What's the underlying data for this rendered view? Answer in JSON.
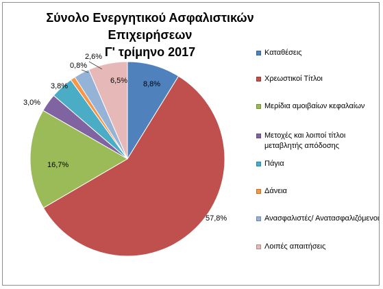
{
  "chart_data": {
    "type": "pie",
    "title": "Σύνολο Ενεργητικού Ασφαλιστικών Επιχειρήσεων",
    "subtitle": "Γ' τρίμηνο 2017",
    "slices": [
      {
        "label": "Καταθέσεις",
        "value": 8.8,
        "display": "8,8%",
        "color": "#4f81bd"
      },
      {
        "label": "Χρεωστικοί  Τίτλοι",
        "value": 57.8,
        "display": "57,8%",
        "color": "#c0504d"
      },
      {
        "label": "Μερίδια  αμοιβαίων κεφαλαίων",
        "value": 16.7,
        "display": "16,7%",
        "color": "#9bbb59"
      },
      {
        "label": "Μετοχές και λοιποί τίτλοι μεταβλητής απόδοσης",
        "value": 3.0,
        "display": "3,0%",
        "color": "#8064a2"
      },
      {
        "label": "Πάγια",
        "value": 3.8,
        "display": "3,8%",
        "color": "#4bacc6"
      },
      {
        "label": "Δάνεια",
        "value": 0.8,
        "display": "0,8%",
        "color": "#f79646"
      },
      {
        "label": "Ανασφαλιστές/ Ανατασφαλιζόμενοι",
        "value": 2.6,
        "display": "2,6%",
        "color": "#95b3d7"
      },
      {
        "label": "Λοιπές απαιτήσεις",
        "value": 6.5,
        "display": "6,5%",
        "color": "#e6b9b8"
      }
    ],
    "legend_position": "right"
  }
}
